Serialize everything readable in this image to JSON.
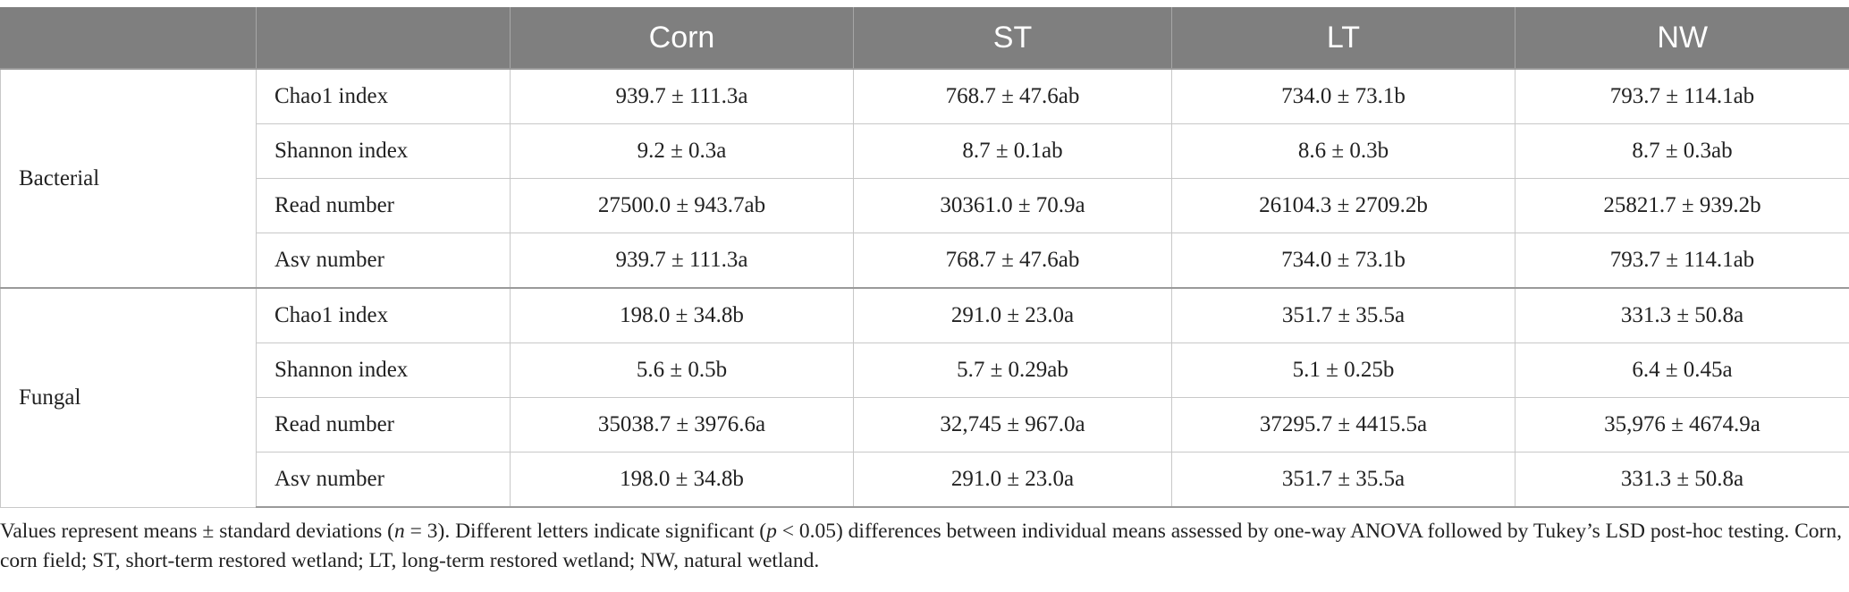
{
  "table": {
    "columns": [
      "",
      "",
      "Corn",
      "ST",
      "LT",
      "NW"
    ],
    "groups": [
      {
        "name": "Bacterial",
        "rows": [
          {
            "metric": "Chao1 index",
            "values": [
              "939.7 ± 111.3a",
              "768.7 ± 47.6ab",
              "734.0 ± 73.1b",
              "793.7 ± 114.1ab"
            ]
          },
          {
            "metric": "Shannon index",
            "values": [
              "9.2 ± 0.3a",
              "8.7 ± 0.1ab",
              "8.6 ± 0.3b",
              "8.7 ± 0.3ab"
            ]
          },
          {
            "metric": "Read number",
            "values": [
              "27500.0 ± 943.7ab",
              "30361.0 ± 70.9a",
              "26104.3 ± 2709.2b",
              "25821.7 ± 939.2b"
            ]
          },
          {
            "metric": "Asv number",
            "values": [
              "939.7 ± 111.3a",
              "768.7 ± 47.6ab",
              "734.0 ± 73.1b",
              "793.7 ± 114.1ab"
            ]
          }
        ]
      },
      {
        "name": "Fungal",
        "rows": [
          {
            "metric": "Chao1 index",
            "values": [
              "198.0 ± 34.8b",
              "291.0 ± 23.0a",
              "351.7 ± 35.5a",
              "331.3 ± 50.8a"
            ]
          },
          {
            "metric": "Shannon index",
            "values": [
              "5.6 ± 0.5b",
              "5.7 ± 0.29ab",
              "5.1 ± 0.25b",
              "6.4 ± 0.45a"
            ]
          },
          {
            "metric": "Read number",
            "values": [
              "35038.7 ± 3976.6a",
              "32,745 ± 967.0a",
              "37295.7 ± 4415.5a",
              "35,976 ± 4674.9a"
            ]
          },
          {
            "metric": "Asv number",
            "values": [
              "198.0 ± 34.8b",
              "291.0 ± 23.0a",
              "351.7 ± 35.5a",
              "331.3 ± 50.8a"
            ]
          }
        ]
      }
    ]
  },
  "footnote": {
    "part1": "Values represent means ± standard deviations (",
    "n_symbol": "n",
    "part2": " = 3). Different letters indicate significant (",
    "p_symbol": "p",
    "part3": " < 0.05) differences between individual means assessed by one-way ANOVA followed by Tukey’s LSD post-hoc testing. Corn, corn field; ST, short-term restored wetland; LT, long-term restored wetland; NW, natural wetland."
  }
}
